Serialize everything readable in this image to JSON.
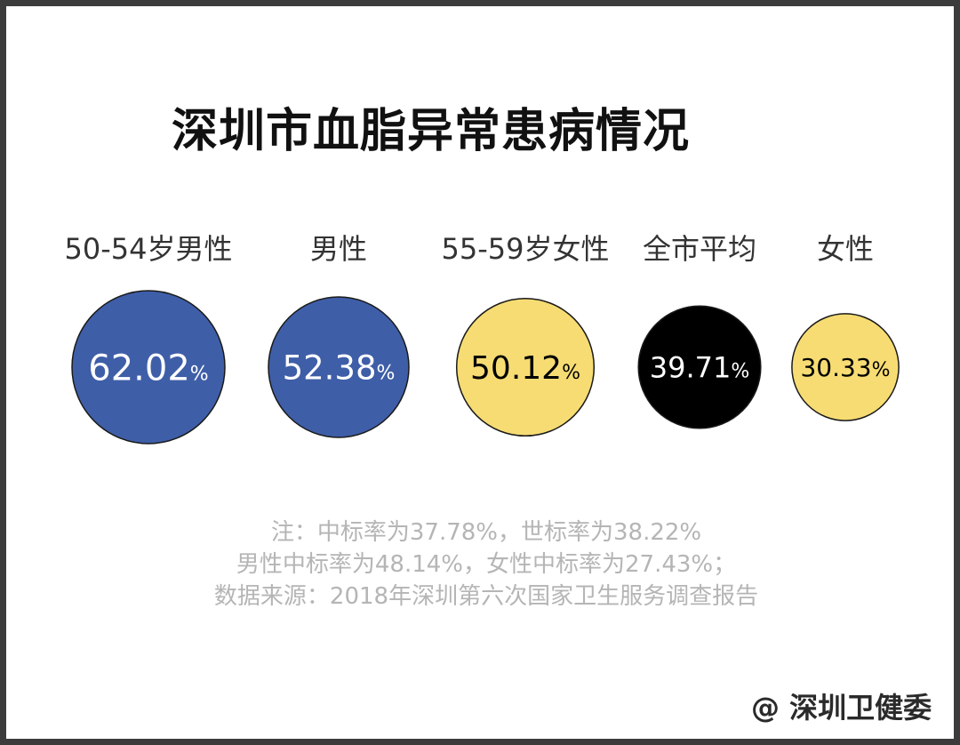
{
  "chart_data": {
    "type": "bubble",
    "title": "深圳市血脂异常患病情况",
    "unit": "%",
    "categories": [
      "50-54岁男性",
      "男性",
      "55-59岁女性",
      "全市平均",
      "女性"
    ],
    "values": [
      62.02,
      52.38,
      50.12,
      39.71,
      30.33
    ],
    "value_labels": [
      "62.02",
      "52.38",
      "50.12",
      "39.71",
      "30.33"
    ],
    "colors": [
      "#3f5ea8",
      "#3f5ea8",
      "#f6dc73",
      "#000000",
      "#f6dc73"
    ],
    "label_colors": [
      "#ffffff",
      "#ffffff",
      "#000000",
      "#ffffff",
      "#000000"
    ]
  },
  "notes": [
    "注：中标率为37.78%，世标率为38.22%",
    "男性中标率为48.14%，女性中标率为27.43%；",
    "数据来源：2018年深圳第六次国家卫生服务调查报告"
  ],
  "watermark": "@ 深圳卫健委"
}
